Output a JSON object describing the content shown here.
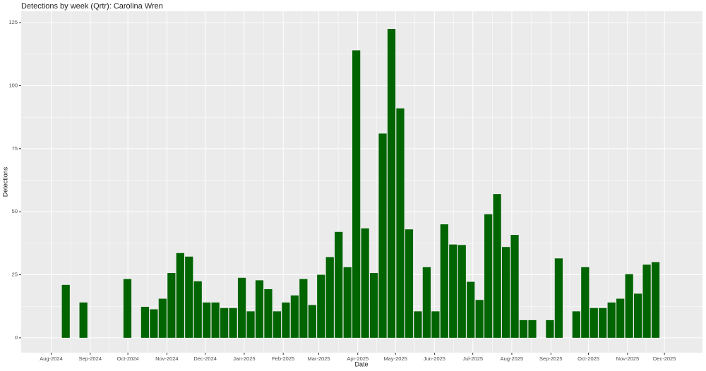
{
  "chart_data": {
    "type": "bar",
    "title": "Detections by week (Qrtr): Carolina Wren",
    "x_label": "Date",
    "y_label": "Detections",
    "color": "#006400",
    "grid": true,
    "x": [
      0,
      2,
      7,
      9,
      10,
      11,
      12,
      13,
      14,
      15,
      16,
      17,
      18,
      19,
      20,
      21,
      22,
      23,
      24,
      25,
      26,
      27,
      28,
      29,
      30,
      31,
      32,
      33,
      34,
      35,
      36,
      37,
      38,
      39,
      40,
      41,
      42,
      43,
      44,
      45,
      46,
      47,
      48,
      49,
      50,
      51,
      52,
      53,
      55,
      56,
      58,
      59,
      60,
      61,
      62,
      63,
      64,
      65,
      66,
      67
    ],
    "values": [
      21,
      14,
      23.3,
      12.3,
      11.3,
      15.5,
      25.7,
      33.6,
      32.2,
      22.4,
      14,
      14,
      11.8,
      11.8,
      23.8,
      10.5,
      22.8,
      19.3,
      10.5,
      14,
      16.8,
      23.3,
      13,
      25,
      32,
      42,
      28,
      114,
      43.4,
      25.7,
      81,
      122.5,
      91,
      43,
      10.5,
      28,
      10.5,
      45,
      37,
      36.8,
      22.2,
      15,
      49,
      57,
      36,
      40.8,
      7,
      7,
      7,
      31.5,
      10.5,
      28,
      11.8,
      11.8,
      14,
      15.5,
      25.2,
      17.5,
      29,
      30
    ],
    "xlim": [
      -5.07,
      72.33
    ],
    "xticks": [
      {
        "value": -1.66,
        "label": "Aug-2024"
      },
      {
        "value": 2.77,
        "label": "Sep-2024"
      },
      {
        "value": 7.05,
        "label": "Oct-2024"
      },
      {
        "value": 11.48,
        "label": "Nov-2024"
      },
      {
        "value": 15.84,
        "label": "Dec-2024"
      },
      {
        "value": 20.27,
        "label": "Jan-2025"
      },
      {
        "value": 24.7,
        "label": "Feb-2025"
      },
      {
        "value": 28.74,
        "label": "Mar-2025"
      },
      {
        "value": 33.17,
        "label": "Apr-2025"
      },
      {
        "value": 37.45,
        "label": "May-2025"
      },
      {
        "value": 41.88,
        "label": "Jun-2025"
      },
      {
        "value": 46.24,
        "label": "Jul-2025"
      },
      {
        "value": 50.67,
        "label": "Aug-2025"
      },
      {
        "value": 55.11,
        "label": "Sep-2025"
      },
      {
        "value": 59.38,
        "label": "Oct-2025"
      },
      {
        "value": 63.82,
        "label": "Nov-2025"
      },
      {
        "value": 68.01,
        "label": "Dec-2025"
      }
    ],
    "ylim": [
      -5.9,
      129.5
    ],
    "yticks": [
      0,
      25,
      50,
      75,
      100,
      125
    ]
  }
}
